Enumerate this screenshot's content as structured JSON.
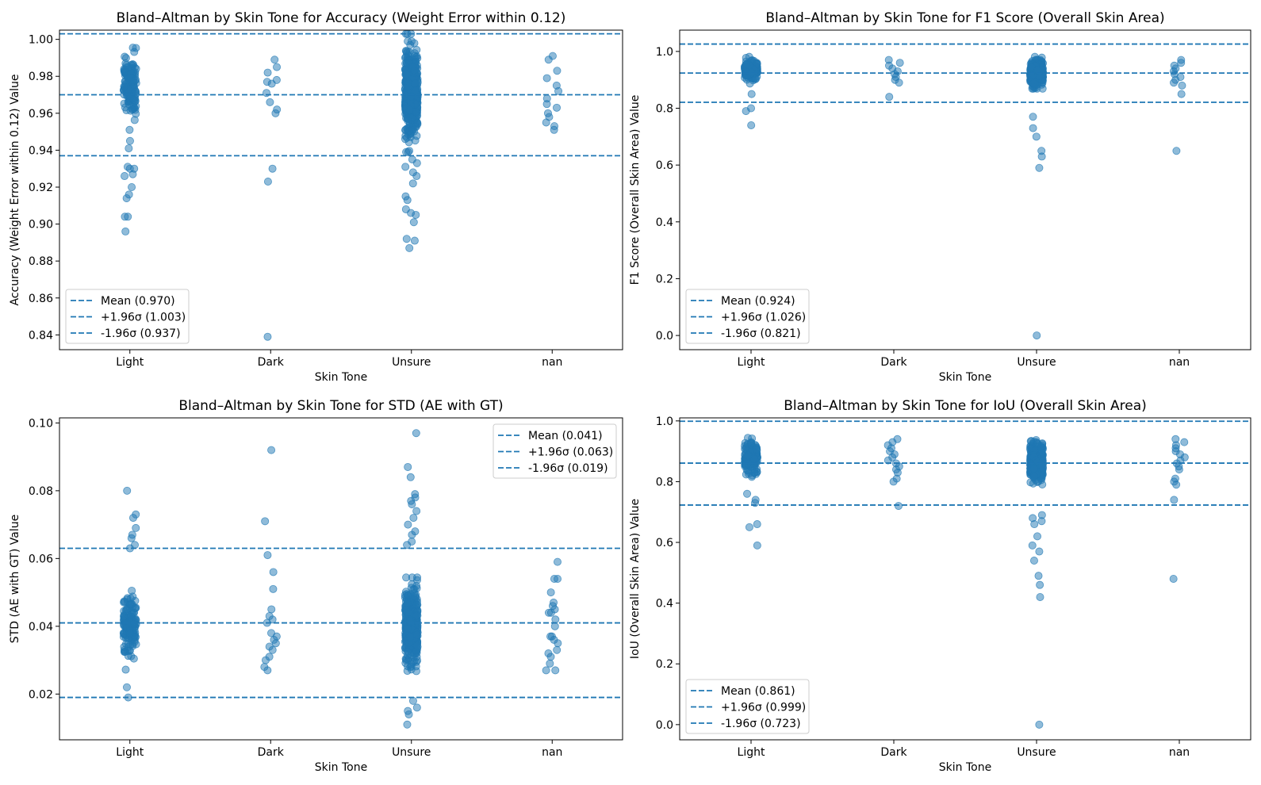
{
  "figure": {
    "accent_color": "#1f77b4"
  },
  "chart_data": [
    {
      "type": "scatter",
      "title": "Bland–Altman by Skin Tone for Accuracy (Weight Error within 0.12)",
      "xlabel": "Skin Tone",
      "ylabel": "Accuracy (Weight Error within 0.12) Value",
      "categories": [
        "Light",
        "Dark",
        "Unsure",
        "nan"
      ],
      "ylim": [
        0.832,
        1.005
      ],
      "yticks": [
        0.84,
        0.86,
        0.88,
        0.9,
        0.92,
        0.94,
        0.96,
        0.98,
        1.0
      ],
      "tick_decimals": 2,
      "legend": {
        "location": "lower left",
        "entries": [
          "Mean (0.970)",
          "+1.96σ (1.003)",
          "-1.96σ (0.937)"
        ]
      },
      "lines": {
        "mean": 0.97,
        "upper": 1.003,
        "lower": 0.937
      },
      "outliers": [
        [
          0,
          0.9955
        ],
        [
          0,
          0.951
        ],
        [
          0,
          0.945
        ],
        [
          0,
          0.941
        ],
        [
          0,
          0.93
        ],
        [
          0,
          0.931
        ],
        [
          0,
          0.93
        ],
        [
          0,
          0.927
        ],
        [
          0,
          0.926
        ],
        [
          0,
          0.92
        ],
        [
          0,
          0.916
        ],
        [
          0,
          0.914
        ],
        [
          0,
          0.904
        ],
        [
          0,
          0.904
        ],
        [
          0,
          0.896
        ],
        [
          1,
          0.989
        ],
        [
          1,
          0.985
        ],
        [
          1,
          0.982
        ],
        [
          1,
          0.978
        ],
        [
          1,
          0.977
        ],
        [
          1,
          0.976
        ],
        [
          1,
          0.971
        ],
        [
          1,
          0.966
        ],
        [
          1,
          0.962
        ],
        [
          1,
          0.96
        ],
        [
          1,
          0.93
        ],
        [
          1,
          0.923
        ],
        [
          1,
          0.839
        ],
        [
          2,
          0.999
        ],
        [
          2,
          0.997
        ],
        [
          2,
          0.935
        ],
        [
          2,
          0.933
        ],
        [
          2,
          0.931
        ],
        [
          2,
          0.928
        ],
        [
          2,
          0.926
        ],
        [
          2,
          0.922
        ],
        [
          2,
          0.915
        ],
        [
          2,
          0.913
        ],
        [
          2,
          0.908
        ],
        [
          2,
          0.906
        ],
        [
          2,
          0.905
        ],
        [
          2,
          0.901
        ],
        [
          2,
          0.892
        ],
        [
          2,
          0.891
        ],
        [
          2,
          0.887
        ],
        [
          3,
          0.991
        ],
        [
          3,
          0.989
        ],
        [
          3,
          0.983
        ],
        [
          3,
          0.979
        ],
        [
          3,
          0.975
        ],
        [
          3,
          0.972
        ],
        [
          3,
          0.968
        ],
        [
          3,
          0.965
        ],
        [
          3,
          0.963
        ],
        [
          3,
          0.96
        ],
        [
          3,
          0.958
        ],
        [
          3,
          0.955
        ],
        [
          3,
          0.953
        ],
        [
          3,
          0.951
        ]
      ],
      "clusters": [
        {
          "cat": 0,
          "center": 0.975,
          "spread": 0.014,
          "n": 150
        },
        {
          "cat": 2,
          "center": 0.971,
          "spread": 0.02,
          "n": 480
        }
      ]
    },
    {
      "type": "scatter",
      "title": "Bland–Altman by Skin Tone for F1 Score (Overall Skin Area)",
      "xlabel": "Skin Tone",
      "ylabel": "F1 Score (Overall Skin Area) Value",
      "categories": [
        "Light",
        "Dark",
        "Unsure",
        "nan"
      ],
      "ylim": [
        -0.05,
        1.075
      ],
      "yticks": [
        0.0,
        0.2,
        0.4,
        0.6,
        0.8,
        1.0
      ],
      "tick_decimals": 1,
      "legend": {
        "location": "lower left",
        "entries": [
          "Mean (0.924)",
          "+1.96σ (1.026)",
          "-1.96σ (0.821)"
        ]
      },
      "lines": {
        "mean": 0.924,
        "upper": 1.026,
        "lower": 0.821
      },
      "outliers": [
        [
          0,
          0.85
        ],
        [
          0,
          0.8
        ],
        [
          0,
          0.79
        ],
        [
          0,
          0.74
        ],
        [
          1,
          0.97
        ],
        [
          1,
          0.96
        ],
        [
          1,
          0.95
        ],
        [
          1,
          0.94
        ],
        [
          1,
          0.93
        ],
        [
          1,
          0.92
        ],
        [
          1,
          0.91
        ],
        [
          1,
          0.9
        ],
        [
          1,
          0.89
        ],
        [
          1,
          0.84
        ],
        [
          2,
          0.77
        ],
        [
          2,
          0.73
        ],
        [
          2,
          0.7
        ],
        [
          2,
          0.65
        ],
        [
          2,
          0.63
        ],
        [
          2,
          0.59
        ],
        [
          2,
          0.0
        ],
        [
          3,
          0.97
        ],
        [
          3,
          0.96
        ],
        [
          3,
          0.95
        ],
        [
          3,
          0.94
        ],
        [
          3,
          0.93
        ],
        [
          3,
          0.92
        ],
        [
          3,
          0.91
        ],
        [
          3,
          0.9
        ],
        [
          3,
          0.89
        ],
        [
          3,
          0.88
        ],
        [
          3,
          0.85
        ],
        [
          3,
          0.65
        ]
      ],
      "clusters": [
        {
          "cat": 0,
          "center": 0.935,
          "spread": 0.03,
          "n": 150
        },
        {
          "cat": 2,
          "center": 0.925,
          "spread": 0.035,
          "n": 480
        }
      ]
    },
    {
      "type": "scatter",
      "title": "Bland–Altman by Skin Tone for STD (AE with GT)",
      "xlabel": "Skin Tone",
      "ylabel": "STD (AE with GT) Value",
      "categories": [
        "Light",
        "Dark",
        "Unsure",
        "nan"
      ],
      "ylim": [
        0.0065,
        0.1015
      ],
      "yticks": [
        0.02,
        0.04,
        0.06,
        0.08,
        0.1
      ],
      "tick_decimals": 2,
      "legend": {
        "location": "upper right",
        "entries": [
          "Mean (0.041)",
          "+1.96σ (0.063)",
          "-1.96σ (0.019)"
        ]
      },
      "lines": {
        "mean": 0.041,
        "upper": 0.063,
        "lower": 0.019
      },
      "outliers": [
        [
          0,
          0.08
        ],
        [
          0,
          0.073
        ],
        [
          0,
          0.072
        ],
        [
          0,
          0.069
        ],
        [
          0,
          0.067
        ],
        [
          0,
          0.066
        ],
        [
          0,
          0.064
        ],
        [
          0,
          0.063
        ],
        [
          0,
          0.022
        ],
        [
          0,
          0.019
        ],
        [
          1,
          0.092
        ],
        [
          1,
          0.071
        ],
        [
          1,
          0.061
        ],
        [
          1,
          0.056
        ],
        [
          1,
          0.051
        ],
        [
          1,
          0.045
        ],
        [
          1,
          0.043
        ],
        [
          1,
          0.042
        ],
        [
          1,
          0.041
        ],
        [
          1,
          0.038
        ],
        [
          1,
          0.037
        ],
        [
          1,
          0.036
        ],
        [
          1,
          0.035
        ],
        [
          1,
          0.034
        ],
        [
          1,
          0.033
        ],
        [
          1,
          0.031
        ],
        [
          1,
          0.03
        ],
        [
          1,
          0.028
        ],
        [
          1,
          0.027
        ],
        [
          2,
          0.097
        ],
        [
          2,
          0.087
        ],
        [
          2,
          0.084
        ],
        [
          2,
          0.079
        ],
        [
          2,
          0.078
        ],
        [
          2,
          0.077
        ],
        [
          2,
          0.076
        ],
        [
          2,
          0.074
        ],
        [
          2,
          0.072
        ],
        [
          2,
          0.07
        ],
        [
          2,
          0.068
        ],
        [
          2,
          0.067
        ],
        [
          2,
          0.065
        ],
        [
          2,
          0.064
        ],
        [
          2,
          0.018
        ],
        [
          2,
          0.016
        ],
        [
          2,
          0.015
        ],
        [
          2,
          0.014
        ],
        [
          2,
          0.011
        ],
        [
          3,
          0.059
        ],
        [
          3,
          0.054
        ],
        [
          3,
          0.054
        ],
        [
          3,
          0.05
        ],
        [
          3,
          0.047
        ],
        [
          3,
          0.046
        ],
        [
          3,
          0.045
        ],
        [
          3,
          0.044
        ],
        [
          3,
          0.044
        ],
        [
          3,
          0.042
        ],
        [
          3,
          0.04
        ],
        [
          3,
          0.037
        ],
        [
          3,
          0.037
        ],
        [
          3,
          0.036
        ],
        [
          3,
          0.035
        ],
        [
          3,
          0.033
        ],
        [
          3,
          0.032
        ],
        [
          3,
          0.031
        ],
        [
          3,
          0.029
        ],
        [
          3,
          0.027
        ],
        [
          3,
          0.027
        ]
      ],
      "clusters": [
        {
          "cat": 0,
          "center": 0.04,
          "spread": 0.008,
          "n": 150
        },
        {
          "cat": 2,
          "center": 0.04,
          "spread": 0.009,
          "n": 480
        }
      ]
    },
    {
      "type": "scatter",
      "title": "Bland–Altman by Skin Tone for IoU (Overall Skin Area)",
      "xlabel": "Skin Tone",
      "ylabel": "IoU (Overall Skin Area) Value",
      "categories": [
        "Light",
        "Dark",
        "Unsure",
        "nan"
      ],
      "ylim": [
        -0.05,
        1.01
      ],
      "yticks": [
        0.0,
        0.2,
        0.4,
        0.6,
        0.8,
        1.0
      ],
      "tick_decimals": 1,
      "legend": {
        "location": "lower left",
        "entries": [
          "Mean (0.861)",
          "+1.96σ (0.999)",
          "-1.96σ (0.723)"
        ]
      },
      "lines": {
        "mean": 0.861,
        "upper": 0.999,
        "lower": 0.723
      },
      "outliers": [
        [
          0,
          0.76
        ],
        [
          0,
          0.74
        ],
        [
          0,
          0.73
        ],
        [
          0,
          0.66
        ],
        [
          0,
          0.65
        ],
        [
          0,
          0.59
        ],
        [
          1,
          0.94
        ],
        [
          1,
          0.93
        ],
        [
          1,
          0.92
        ],
        [
          1,
          0.91
        ],
        [
          1,
          0.9
        ],
        [
          1,
          0.89
        ],
        [
          1,
          0.88
        ],
        [
          1,
          0.87
        ],
        [
          1,
          0.86
        ],
        [
          1,
          0.85
        ],
        [
          1,
          0.84
        ],
        [
          1,
          0.83
        ],
        [
          1,
          0.81
        ],
        [
          1,
          0.8
        ],
        [
          1,
          0.72
        ],
        [
          2,
          0.69
        ],
        [
          2,
          0.68
        ],
        [
          2,
          0.67
        ],
        [
          2,
          0.66
        ],
        [
          2,
          0.62
        ],
        [
          2,
          0.59
        ],
        [
          2,
          0.57
        ],
        [
          2,
          0.54
        ],
        [
          2,
          0.49
        ],
        [
          2,
          0.46
        ],
        [
          2,
          0.42
        ],
        [
          2,
          0.0
        ],
        [
          3,
          0.94
        ],
        [
          3,
          0.93
        ],
        [
          3,
          0.92
        ],
        [
          3,
          0.91
        ],
        [
          3,
          0.9
        ],
        [
          3,
          0.89
        ],
        [
          3,
          0.88
        ],
        [
          3,
          0.87
        ],
        [
          3,
          0.86
        ],
        [
          3,
          0.85
        ],
        [
          3,
          0.84
        ],
        [
          3,
          0.81
        ],
        [
          3,
          0.8
        ],
        [
          3,
          0.79
        ],
        [
          3,
          0.74
        ],
        [
          3,
          0.48
        ]
      ],
      "clusters": [
        {
          "cat": 0,
          "center": 0.875,
          "spread": 0.045,
          "n": 150
        },
        {
          "cat": 2,
          "center": 0.865,
          "spread": 0.05,
          "n": 480
        }
      ]
    }
  ]
}
